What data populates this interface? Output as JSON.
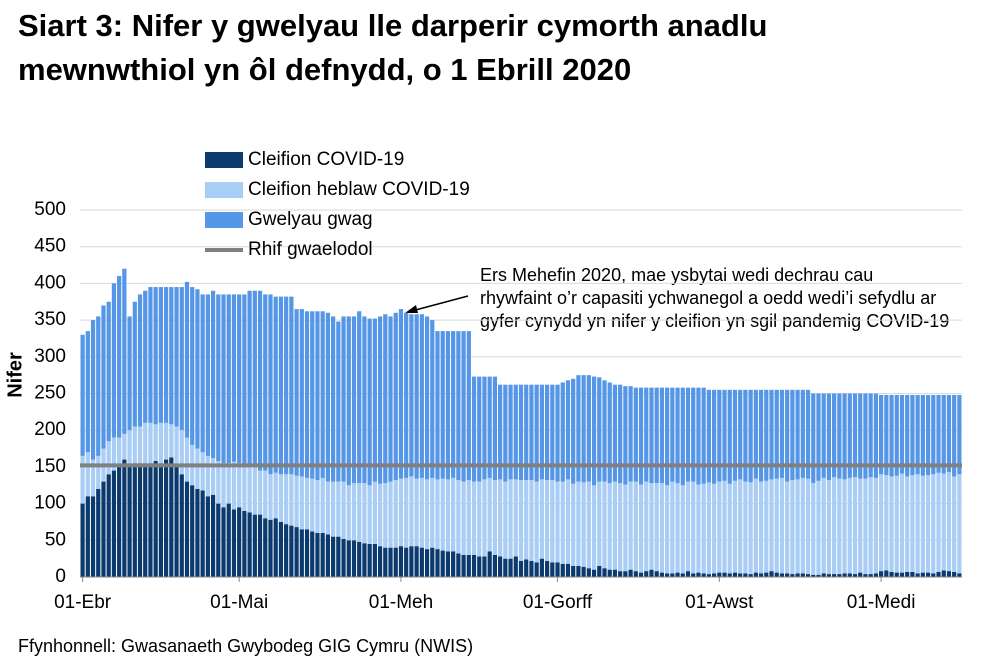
{
  "chart_data": {
    "type": "stacked-bar",
    "title": "Siart 3: Nifer y gwelyau lle darperir cymorth anadlu mewnwthiol yn ôl defnydd, o 1 Ebrill 2020",
    "y_label": "Nifer",
    "annotation": "Ers Mehefin 2020, mae ysbytai wedi dechrau cau rhywfaint o’r capasiti ychwanegol a oedd wedi’i sefydlu ar gyfer cynydd yn nifer y cleifion yn sgil pandemig COVID-19",
    "source": "Ffynhonnell: Gwasanaeth Gwybodeg GIG Cymru (NWIS)",
    "ylim": [
      0,
      500
    ],
    "yticks": [
      0,
      50,
      100,
      150,
      200,
      250,
      300,
      350,
      400,
      450,
      500
    ],
    "grid": true,
    "categories": [
      "01-Ebr",
      null,
      null,
      null,
      null,
      null,
      null,
      null,
      null,
      null,
      null,
      null,
      null,
      null,
      null,
      null,
      null,
      null,
      null,
      null,
      null,
      null,
      null,
      null,
      null,
      null,
      null,
      null,
      null,
      null,
      "01-Mai",
      null,
      null,
      null,
      null,
      null,
      null,
      null,
      null,
      null,
      null,
      null,
      null,
      null,
      null,
      null,
      null,
      null,
      null,
      null,
      null,
      null,
      null,
      null,
      null,
      null,
      null,
      null,
      null,
      null,
      null,
      "01-Meh",
      null,
      null,
      null,
      null,
      null,
      null,
      null,
      null,
      null,
      null,
      null,
      null,
      null,
      null,
      null,
      null,
      null,
      null,
      null,
      null,
      null,
      null,
      null,
      null,
      null,
      null,
      null,
      null,
      null,
      "01-Gorff",
      null,
      null,
      null,
      null,
      null,
      null,
      null,
      null,
      null,
      null,
      null,
      null,
      null,
      null,
      null,
      null,
      null,
      null,
      null,
      null,
      null,
      null,
      null,
      null,
      null,
      null,
      null,
      null,
      null,
      null,
      "01-Awst",
      null,
      null,
      null,
      null,
      null,
      null,
      null,
      null,
      null,
      null,
      null,
      null,
      null,
      null,
      null,
      null,
      null,
      null,
      null,
      null,
      null,
      null,
      null,
      null,
      null,
      null,
      null,
      null,
      null,
      null,
      "01-Medi",
      null,
      null,
      null,
      null,
      null,
      null,
      null,
      null,
      null,
      null,
      null,
      null,
      null,
      null,
      null
    ],
    "series": [
      {
        "name": "Cleifion COVID-19",
        "color": "#0b3a6e",
        "values": [
          100,
          110,
          110,
          120,
          130,
          140,
          145,
          150,
          160,
          152,
          155,
          155,
          155,
          155,
          158,
          155,
          160,
          163,
          150,
          140,
          130,
          125,
          120,
          118,
          110,
          112,
          100,
          95,
          100,
          92,
          95,
          90,
          88,
          85,
          85,
          80,
          78,
          80,
          75,
          72,
          70,
          68,
          65,
          65,
          62,
          60,
          60,
          58,
          55,
          55,
          52,
          50,
          50,
          48,
          46,
          45,
          45,
          42,
          40,
          40,
          40,
          42,
          40,
          42,
          42,
          40,
          38,
          40,
          38,
          36,
          35,
          35,
          32,
          30,
          30,
          30,
          28,
          28,
          35,
          30,
          28,
          25,
          25,
          28,
          22,
          24,
          22,
          20,
          25,
          22,
          20,
          20,
          18,
          18,
          15,
          15,
          14,
          12,
          10,
          15,
          12,
          10,
          10,
          8,
          8,
          10,
          8,
          6,
          8,
          10,
          8,
          6,
          5,
          5,
          6,
          5,
          8,
          5,
          6,
          5,
          4,
          5,
          6,
          6,
          5,
          6,
          5,
          5,
          4,
          6,
          5,
          6,
          8,
          6,
          5,
          5,
          4,
          5,
          5,
          4,
          3,
          3,
          5,
          4,
          4,
          4,
          5,
          5,
          4,
          6,
          4,
          4,
          5,
          8,
          9,
          7,
          6,
          6,
          7,
          7,
          5,
          6,
          6,
          5,
          7,
          9,
          8,
          7,
          5
        ]
      },
      {
        "name": "Cleifion heblaw COVID-19",
        "color": "#a9cdf5",
        "values": [
          65,
          60,
          50,
          45,
          45,
          45,
          45,
          40,
          35,
          48,
          50,
          50,
          55,
          55,
          50,
          55,
          50,
          45,
          55,
          60,
          60,
          55,
          55,
          52,
          55,
          50,
          58,
          60,
          55,
          65,
          60,
          62,
          65,
          65,
          60,
          65,
          62,
          62,
          65,
          68,
          70,
          70,
          72,
          70,
          72,
          72,
          75,
          72,
          75,
          75,
          78,
          75,
          78,
          80,
          82,
          80,
          85,
          85,
          88,
          90,
          92,
          92,
          95,
          95,
          92,
          95,
          95,
          95,
          95,
          98,
          98,
          100,
          100,
          100,
          102,
          100,
          102,
          105,
          100,
          102,
          105,
          105,
          108,
          105,
          110,
          108,
          110,
          110,
          108,
          110,
          112,
          110,
          112,
          115,
          112,
          115,
          115,
          118,
          115,
          115,
          118,
          118,
          120,
          120,
          118,
          120,
          122,
          120,
          122,
          118,
          120,
          122,
          120,
          125,
          122,
          120,
          122,
          125,
          120,
          122,
          125,
          122,
          124,
          125,
          122,
          125,
          128,
          125,
          125,
          128,
          125,
          125,
          125,
          128,
          130,
          125,
          128,
          128,
          130,
          130,
          125,
          128,
          130,
          128,
          132,
          130,
          128,
          130,
          132,
          128,
          130,
          132,
          130,
          132,
          130,
          130,
          132,
          135,
          130,
          132,
          135,
          132,
          133,
          135,
          135,
          132,
          135,
          130,
          135
        ]
      },
      {
        "name": "Gwelyau gwag",
        "color": "#5596e6",
        "values": [
          165,
          165,
          190,
          190,
          195,
          190,
          210,
          220,
          225,
          155,
          170,
          180,
          180,
          185,
          187,
          185,
          185,
          187,
          190,
          195,
          212,
          215,
          217,
          215,
          220,
          228,
          227,
          230,
          230,
          228,
          230,
          233,
          237,
          240,
          245,
          240,
          245,
          240,
          242,
          242,
          242,
          227,
          228,
          227,
          228,
          230,
          227,
          230,
          225,
          218,
          225,
          230,
          227,
          234,
          227,
          227,
          222,
          228,
          230,
          225,
          228,
          231,
          225,
          221,
          224,
          223,
          222,
          215,
          202,
          201,
          202,
          200,
          203,
          205,
          203,
          143,
          143,
          140,
          138,
          141,
          129,
          132,
          129,
          129,
          130,
          130,
          130,
          132,
          129,
          130,
          130,
          132,
          135,
          135,
          143,
          145,
          146,
          145,
          148,
          142,
          138,
          137,
          132,
          134,
          134,
          130,
          128,
          132,
          128,
          130,
          130,
          130,
          133,
          128,
          130,
          133,
          128,
          128,
          132,
          131,
          126,
          128,
          125,
          124,
          128,
          124,
          122,
          125,
          126,
          121,
          125,
          124,
          122,
          121,
          120,
          125,
          123,
          122,
          120,
          121,
          122,
          119,
          115,
          118,
          114,
          116,
          117,
          115,
          114,
          116,
          116,
          114,
          115,
          108,
          109,
          111,
          110,
          107,
          111,
          109,
          108,
          110,
          109,
          108,
          106,
          107,
          105,
          111,
          108
        ]
      }
    ],
    "baseline": {
      "name": "Rhif gwaelodol",
      "value": 152,
      "color": "#808080"
    }
  }
}
